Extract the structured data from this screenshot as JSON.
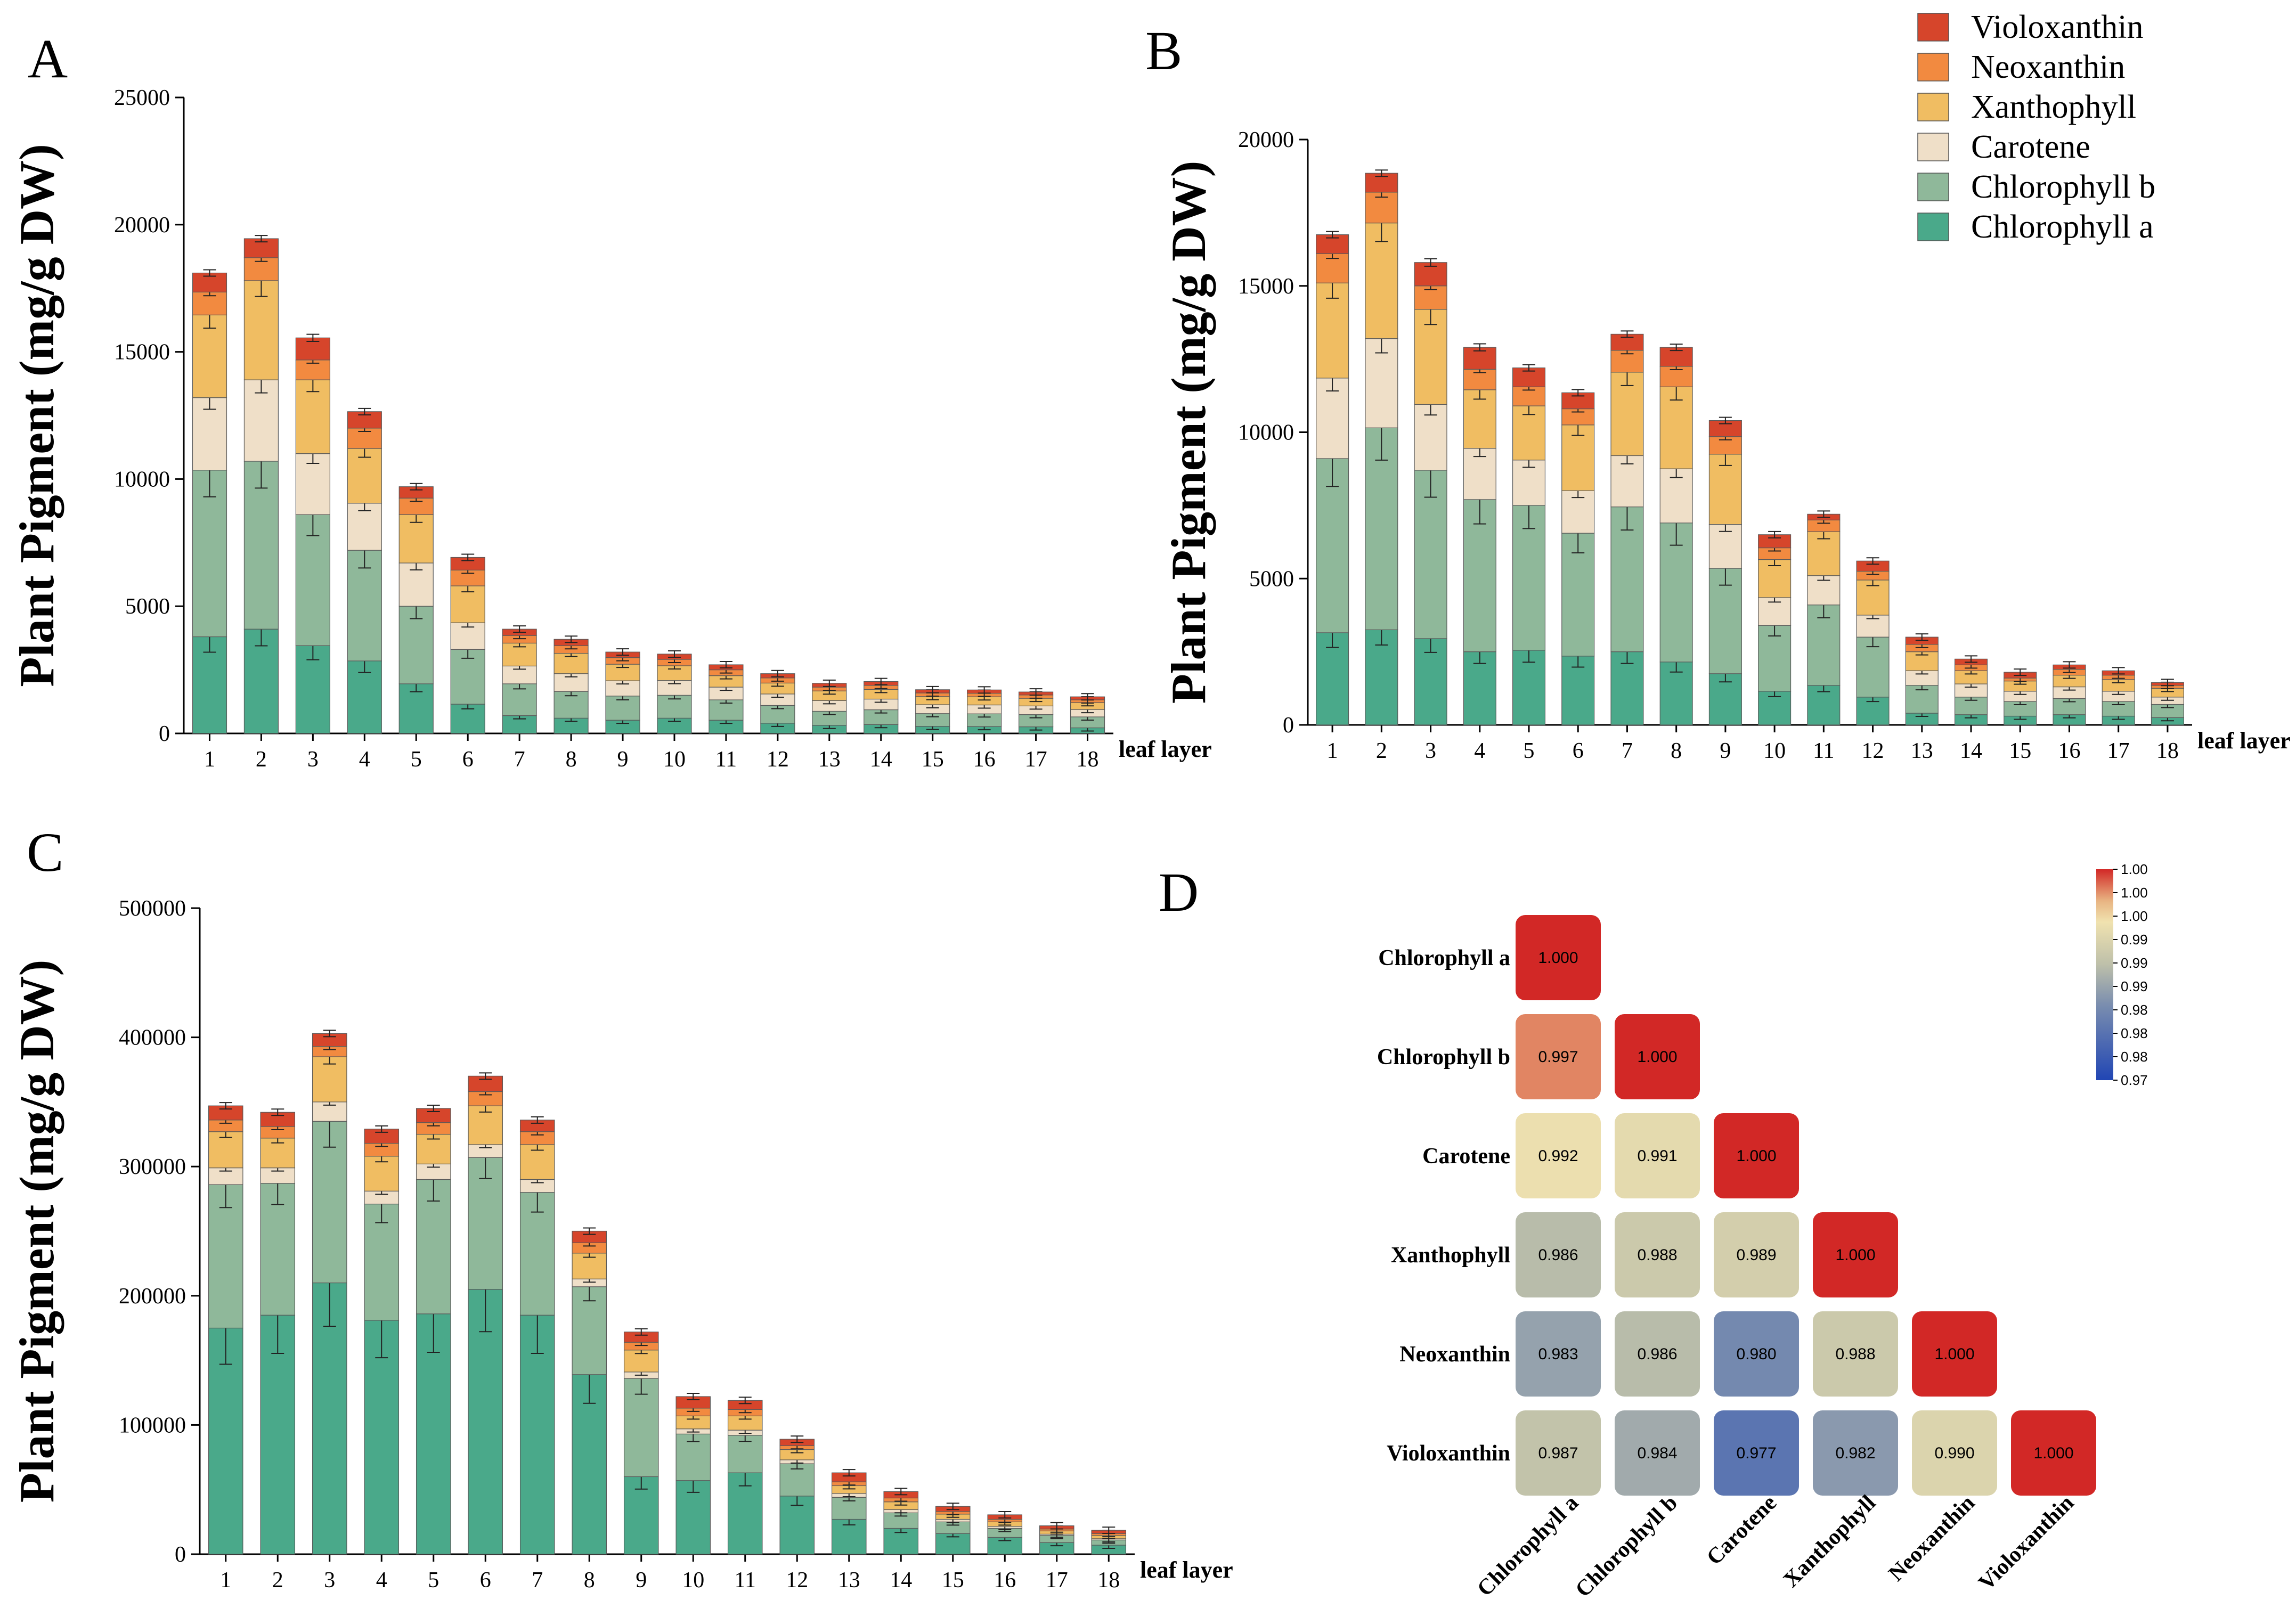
{
  "legend": {
    "items": [
      {
        "name": "Violoxanthin",
        "color": "#d6452b"
      },
      {
        "name": "Neoxanthin",
        "color": "#f28a40"
      },
      {
        "name": "Xanthophyll",
        "color": "#f0bd62"
      },
      {
        "name": "Carotene",
        "color": "#efdfc8"
      },
      {
        "name": "Chlorophyll b",
        "color": "#8fb89a"
      },
      {
        "name": "Chlorophyll a",
        "color": "#4aa98a"
      }
    ]
  },
  "chart_data": [
    {
      "panel": "A",
      "type": "bar",
      "stacked": true,
      "ylabel": "Plant Pigment (mg/g DW)",
      "xlabel": "leaf layer",
      "ylim": [
        0,
        25000
      ],
      "yticks": [
        "0",
        "5000",
        "10000",
        "15000",
        "20000",
        "25000"
      ],
      "categories": [
        "1",
        "2",
        "3",
        "4",
        "5",
        "6",
        "7",
        "8",
        "9",
        "10",
        "11",
        "12",
        "13",
        "14",
        "15",
        "16",
        "17",
        "18"
      ],
      "series": [
        {
          "name": "Chlorophyll a",
          "values": [
            3800,
            4100,
            3450,
            2850,
            1950,
            1150,
            700,
            600,
            520,
            600,
            520,
            400,
            320,
            350,
            280,
            270,
            260,
            220
          ]
        },
        {
          "name": "Chlorophyll b",
          "values": [
            6550,
            6600,
            5150,
            4350,
            3050,
            2150,
            1250,
            1050,
            950,
            900,
            800,
            700,
            550,
            580,
            500,
            500,
            480,
            430
          ]
        },
        {
          "name": "Carotene",
          "values": [
            2850,
            3200,
            2400,
            1850,
            1700,
            1050,
            700,
            700,
            600,
            580,
            500,
            450,
            420,
            420,
            350,
            350,
            340,
            290
          ]
        },
        {
          "name": "Xanthophyll",
          "values": [
            3250,
            3900,
            2900,
            2150,
            1900,
            1450,
            900,
            800,
            650,
            580,
            450,
            430,
            380,
            380,
            320,
            320,
            300,
            270
          ]
        },
        {
          "name": "Neoxanthin",
          "values": [
            900,
            900,
            780,
            800,
            650,
            620,
            300,
            300,
            260,
            250,
            230,
            200,
            150,
            160,
            140,
            140,
            130,
            110
          ]
        },
        {
          "name": "Violoxanthin",
          "values": [
            750,
            750,
            870,
            650,
            450,
            500,
            250,
            250,
            220,
            210,
            200,
            170,
            150,
            150,
            130,
            130,
            120,
            120
          ]
        }
      ]
    },
    {
      "panel": "B",
      "type": "bar",
      "stacked": true,
      "ylabel": "Plant Pigment (mg/g DW)",
      "xlabel": "leaf layer",
      "ylim": [
        0,
        20000
      ],
      "yticks": [
        "0",
        "5000",
        "10000",
        "15000",
        "20000"
      ],
      "categories": [
        "1",
        "2",
        "3",
        "4",
        "5",
        "6",
        "7",
        "8",
        "9",
        "10",
        "11",
        "12",
        "13",
        "14",
        "15",
        "16",
        "17",
        "18"
      ],
      "series": [
        {
          "name": "Chlorophyll a",
          "values": [
            3150,
            3250,
            2950,
            2500,
            2550,
            2350,
            2500,
            2150,
            1750,
            1150,
            1350,
            950,
            400,
            350,
            300,
            350,
            300,
            250
          ]
        },
        {
          "name": "Chlorophyll b",
          "values": [
            5950,
            6900,
            5750,
            5200,
            4950,
            4200,
            4950,
            4750,
            3600,
            2250,
            2750,
            2050,
            950,
            600,
            500,
            550,
            500,
            450
          ]
        },
        {
          "name": "Carotene",
          "values": [
            2750,
            3050,
            2250,
            1750,
            1550,
            1450,
            1750,
            1850,
            1500,
            950,
            1000,
            750,
            500,
            450,
            350,
            400,
            350,
            250
          ]
        },
        {
          "name": "Xanthophyll",
          "values": [
            3250,
            3950,
            3250,
            2000,
            1850,
            2250,
            2850,
            2800,
            2400,
            1300,
            1500,
            1200,
            650,
            450,
            350,
            400,
            400,
            300
          ]
        },
        {
          "name": "Neoxanthin",
          "values": [
            1000,
            1050,
            800,
            700,
            650,
            550,
            750,
            700,
            600,
            400,
            400,
            300,
            250,
            200,
            100,
            200,
            150,
            100
          ]
        },
        {
          "name": "Violoxanthin",
          "values": [
            650,
            650,
            800,
            750,
            650,
            550,
            550,
            650,
            550,
            450,
            200,
            350,
            250,
            200,
            200,
            150,
            150,
            100
          ]
        }
      ]
    },
    {
      "panel": "C",
      "type": "bar",
      "stacked": true,
      "ylabel": "Plant Pigment (mg/g DW)",
      "xlabel": "leaf layer",
      "ylim": [
        0,
        500000
      ],
      "yticks": [
        "0",
        "100000",
        "200000",
        "300000",
        "400000",
        "500000"
      ],
      "categories": [
        "1",
        "2",
        "3",
        "4",
        "5",
        "6",
        "7",
        "8",
        "9",
        "10",
        "11",
        "12",
        "13",
        "14",
        "15",
        "16",
        "17",
        "18"
      ],
      "series": [
        {
          "name": "Chlorophyll a",
          "values": [
            175000,
            185000,
            210000,
            181000,
            186000,
            205000,
            185000,
            139000,
            60000,
            57000,
            63000,
            45000,
            27000,
            20000,
            16000,
            13000,
            9000,
            7000
          ]
        },
        {
          "name": "Chlorophyll b",
          "values": [
            111000,
            102000,
            125000,
            90000,
            104000,
            102000,
            95000,
            68000,
            76000,
            36000,
            29000,
            25000,
            17000,
            12000,
            9000,
            7000,
            5500,
            4000
          ]
        },
        {
          "name": "Carotene",
          "values": [
            13000,
            12000,
            15000,
            10000,
            12000,
            10000,
            10000,
            6000,
            5000,
            4000,
            4000,
            3000,
            3000,
            2500,
            2000,
            1500,
            1000,
            1000
          ]
        },
        {
          "name": "Xanthophyll",
          "values": [
            28000,
            23000,
            35000,
            27000,
            23000,
            30000,
            27000,
            20000,
            17000,
            10000,
            11000,
            8000,
            6000,
            6000,
            4000,
            3500,
            2500,
            2500
          ]
        },
        {
          "name": "Neoxanthin",
          "values": [
            9000,
            9000,
            8000,
            10000,
            9000,
            11000,
            10000,
            8000,
            6000,
            6000,
            5000,
            3000,
            3000,
            3000,
            2000,
            2000,
            1500,
            1500
          ]
        },
        {
          "name": "Violoxanthin",
          "values": [
            11000,
            11000,
            10000,
            11000,
            11000,
            12000,
            9000,
            9000,
            8000,
            9000,
            7000,
            5000,
            7000,
            5000,
            4000,
            3500,
            2500,
            2500
          ]
        }
      ]
    },
    {
      "panel": "D",
      "type": "heatmap",
      "variables": [
        "Chlorophyll a",
        "Chlorophyll b",
        "Carotene",
        "Xanthophyll",
        "Neoxanthin",
        "Violoxanthin"
      ],
      "matrix": [
        [
          1.0
        ],
        [
          0.997,
          1.0
        ],
        [
          0.992,
          0.991,
          1.0
        ],
        [
          0.986,
          0.988,
          0.989,
          1.0
        ],
        [
          0.983,
          0.986,
          0.98,
          0.988,
          1.0
        ],
        [
          0.987,
          0.984,
          0.977,
          0.982,
          0.99,
          1.0
        ]
      ],
      "value_labels": [
        [
          "1.000"
        ],
        [
          "0.997",
          "1.000"
        ],
        [
          "0.992",
          "0.991",
          "1.000"
        ],
        [
          "0.986",
          "0.988",
          "0.989",
          "1.000"
        ],
        [
          "0.983",
          "0.986",
          "0.980",
          "0.988",
          "1.000"
        ],
        [
          "0.987",
          "0.984",
          "0.977",
          "0.982",
          "0.990",
          "1.000"
        ]
      ],
      "colorbar": {
        "range": [
          0.97,
          1.0
        ],
        "labels": [
          "1.00",
          "1.00",
          "1.00",
          "0.99",
          "0.99",
          "0.99",
          "0.98",
          "0.98",
          "0.98",
          "0.97"
        ]
      }
    }
  ]
}
